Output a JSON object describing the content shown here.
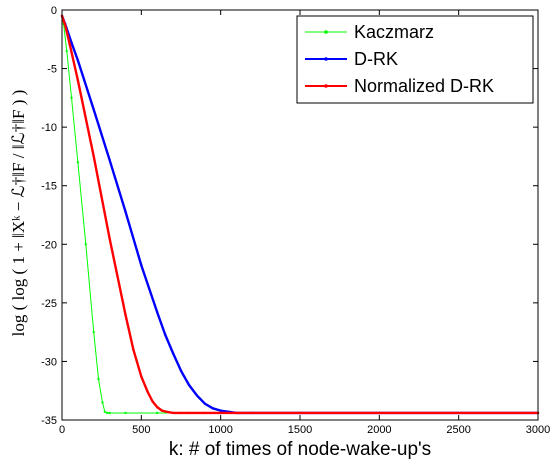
{
  "chart_data": {
    "type": "line",
    "title": "",
    "xlabel": "k: # of times of node-wake-up's",
    "ylabel": "log ( log ( 1 + ‖Xᵏ − ℒ†‖F / ‖ℒ†‖F ) )",
    "xlim": [
      0,
      3000
    ],
    "ylim": [
      -35,
      0
    ],
    "xticks": [
      0,
      500,
      1000,
      1500,
      2000,
      2500,
      3000
    ],
    "yticks": [
      0,
      -5,
      -10,
      -15,
      -20,
      -25,
      -30,
      -35
    ],
    "legend_position": "top-right",
    "series": [
      {
        "name": "Kaczmarz",
        "color": "#00ff00",
        "x": [
          0,
          10,
          30,
          60,
          100,
          150,
          200,
          230,
          255,
          270,
          285,
          300,
          400,
          600,
          1000,
          2000,
          3000
        ],
        "y": [
          -0.5,
          -1.2,
          -3.5,
          -7.5,
          -13,
          -20,
          -27.5,
          -31.5,
          -33.5,
          -34.3,
          -34.4,
          -34.4,
          -34.4,
          -34.4,
          -34.4,
          -34.4,
          -34.4
        ]
      },
      {
        "name": "D-RK",
        "color": "#0000ff",
        "x": [
          0,
          20,
          60,
          100,
          200,
          300,
          400,
          500,
          600,
          650,
          700,
          750,
          800,
          850,
          900,
          950,
          1000,
          1050,
          1100,
          1200,
          1500,
          2000,
          3000
        ],
        "y": [
          -0.5,
          -1.2,
          -2.8,
          -4.3,
          -8.5,
          -12.8,
          -17.2,
          -21.8,
          -25.8,
          -27.7,
          -29.3,
          -30.8,
          -32.0,
          -32.9,
          -33.6,
          -34.0,
          -34.2,
          -34.3,
          -34.4,
          -34.4,
          -34.4,
          -34.4,
          -34.4
        ]
      },
      {
        "name": "Normalized D-RK",
        "color": "#ff0000",
        "x": [
          0,
          20,
          50,
          100,
          200,
          300,
          400,
          450,
          500,
          540,
          570,
          600,
          630,
          660,
          700,
          750,
          800,
          900,
          1000,
          1500,
          2000,
          3000
        ],
        "y": [
          -0.5,
          -1.3,
          -3.0,
          -6.0,
          -12.5,
          -19.5,
          -26.0,
          -29.0,
          -31.3,
          -32.6,
          -33.4,
          -33.9,
          -34.2,
          -34.3,
          -34.4,
          -34.4,
          -34.4,
          -34.4,
          -34.4,
          -34.4,
          -34.4,
          -34.4
        ]
      }
    ]
  }
}
